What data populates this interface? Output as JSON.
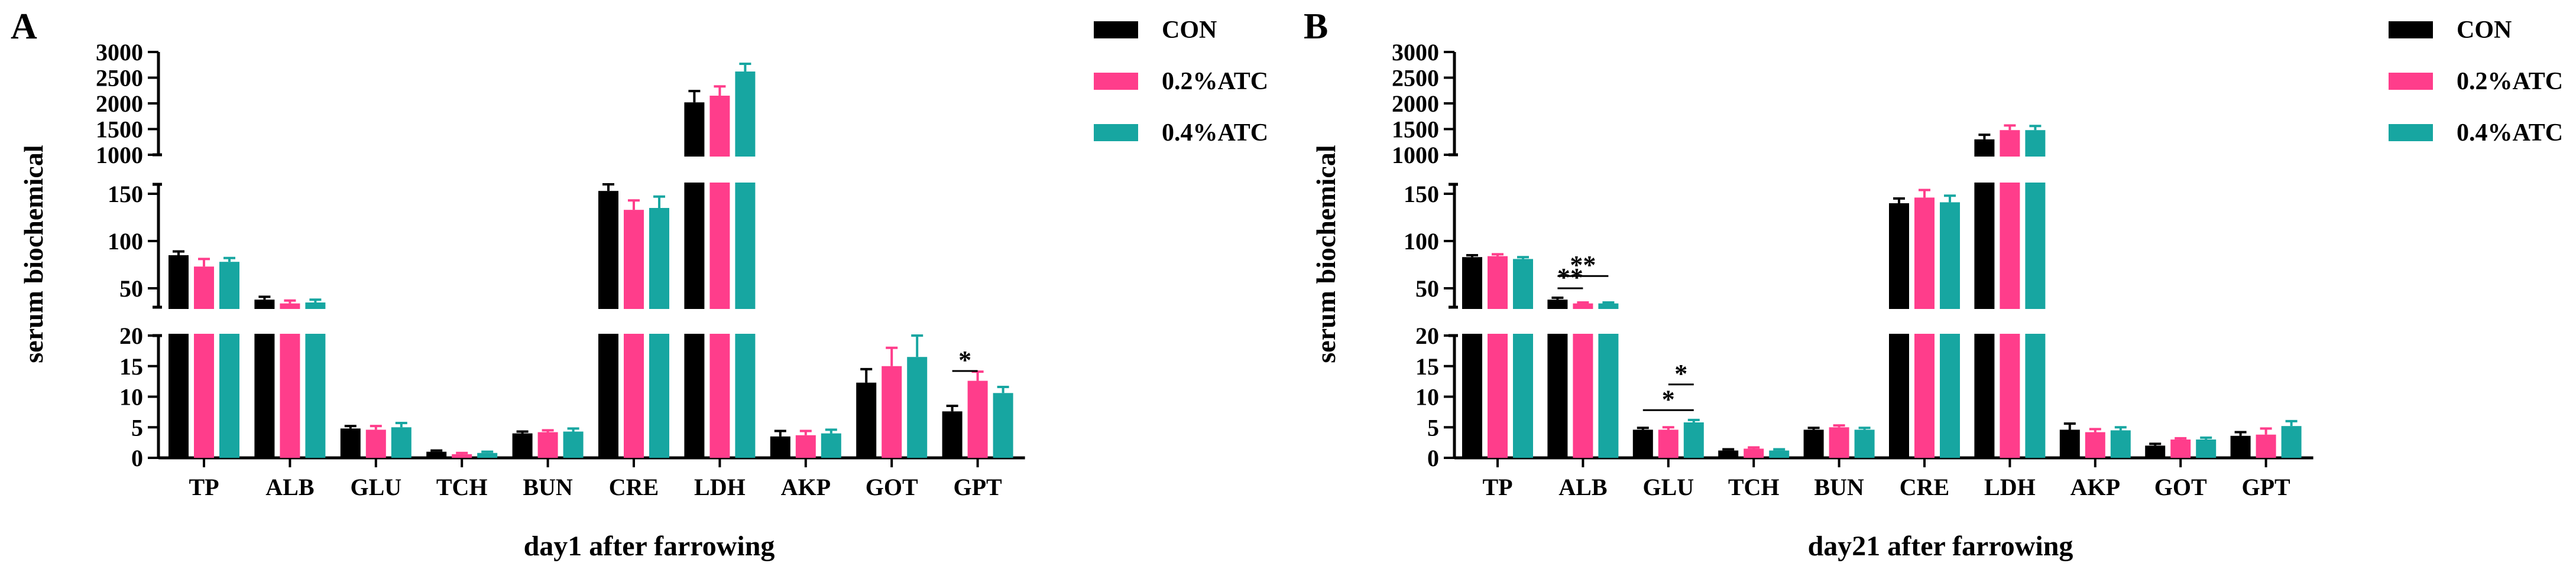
{
  "chart_data": [
    {
      "type": "bar",
      "panel_label": "A",
      "title": "",
      "xlabel": "day1 after farrowing",
      "ylabel": "serum biochemical",
      "categories": [
        "TP",
        "ALB",
        "GLU",
        "TCH",
        "BUN",
        "CRE",
        "LDH",
        "AKP",
        "GOT",
        "GPT"
      ],
      "series": [
        {
          "name": "CON",
          "color": "#000000",
          "values": [
            85,
            38,
            4.8,
            1.0,
            4.0,
            153,
            2020,
            3.5,
            12.3,
            7.6
          ],
          "errors": [
            4,
            3,
            0.4,
            0.2,
            0.3,
            8,
            220,
            0.9,
            2.2,
            0.9
          ]
        },
        {
          "name": "0.2%ATC",
          "color": "#ff3d8b",
          "values": [
            73,
            34,
            4.6,
            0.6,
            4.2,
            133,
            2150,
            3.7,
            15.0,
            12.6
          ],
          "errors": [
            8,
            3,
            0.6,
            0.2,
            0.3,
            10,
            180,
            0.7,
            3.0,
            1.5
          ]
        },
        {
          "name": "0.4%ATC",
          "color": "#17a6a1",
          "values": [
            78,
            35,
            5.0,
            0.8,
            4.3,
            135,
            2620,
            4.0,
            16.5,
            10.6
          ],
          "errors": [
            4,
            3,
            0.7,
            0.2,
            0.5,
            12,
            150,
            0.6,
            3.5,
            1.0
          ]
        }
      ],
      "y_segments": [
        {
          "range": [
            0,
            20
          ],
          "ticks": [
            "0",
            "5",
            "10",
            "15",
            "20"
          ]
        },
        {
          "range": [
            30,
            160
          ],
          "ticks": [
            "50",
            "100",
            "150"
          ]
        },
        {
          "range": [
            1000,
            3000
          ],
          "ticks": [
            "1000",
            "1500",
            "2000",
            "2500",
            "3000"
          ]
        }
      ],
      "annotations": [
        {
          "text": "*",
          "category": "GPT",
          "from_series": "CON",
          "to_series": "0.2%ATC",
          "y": 14.2
        }
      ],
      "legend": {
        "position": "top-right",
        "entries": [
          "CON",
          "0.2%ATC",
          "0.4%ATC"
        ]
      }
    },
    {
      "type": "bar",
      "panel_label": "B",
      "title": "",
      "xlabel": "day21 after farrowing",
      "ylabel": "serum biochemical",
      "categories": [
        "TP",
        "ALB",
        "GLU",
        "TCH",
        "BUN",
        "CRE",
        "LDH",
        "AKP",
        "GOT",
        "GPT"
      ],
      "series": [
        {
          "name": "CON",
          "color": "#000000",
          "values": [
            83,
            38,
            4.6,
            1.2,
            4.6,
            140,
            1300,
            4.6,
            2.0,
            3.6
          ],
          "errors": [
            2,
            2,
            0.3,
            0.2,
            0.3,
            5,
            90,
            1.0,
            0.3,
            0.6
          ]
        },
        {
          "name": "0.2%ATC",
          "color": "#ff3d8b",
          "values": [
            84,
            34,
            4.6,
            1.5,
            5.0,
            146,
            1480,
            4.2,
            3.0,
            3.8
          ],
          "errors": [
            2,
            1,
            0.4,
            0.2,
            0.3,
            8,
            90,
            0.5,
            0.2,
            1.0
          ]
        },
        {
          "name": "0.4%ATC",
          "color": "#17a6a1",
          "values": [
            81,
            34,
            5.8,
            1.2,
            4.6,
            141,
            1480,
            4.5,
            3.0,
            5.2
          ],
          "errors": [
            2,
            1,
            0.4,
            0.2,
            0.3,
            7,
            80,
            0.5,
            0.3,
            0.8
          ]
        }
      ],
      "y_segments": [
        {
          "range": [
            0,
            20
          ],
          "ticks": [
            "0",
            "5",
            "10",
            "15",
            "20"
          ]
        },
        {
          "range": [
            30,
            160
          ],
          "ticks": [
            "50",
            "100",
            "150"
          ]
        },
        {
          "range": [
            1000,
            3000
          ],
          "ticks": [
            "1000",
            "1500",
            "2000",
            "2500",
            "3000"
          ]
        }
      ],
      "annotations": [
        {
          "text": "**",
          "category": "ALB",
          "from_series": "CON",
          "to_series": "0.2%ATC",
          "y": 50
        },
        {
          "text": "**",
          "category": "ALB",
          "from_series": "CON",
          "to_series": "0.4%ATC",
          "y": 63
        },
        {
          "text": "*",
          "category": "GLU",
          "from_series": "CON",
          "to_series": "0.4%ATC",
          "y": 7.8
        },
        {
          "text": "*",
          "category": "GLU",
          "from_series": "0.2%ATC",
          "to_series": "0.4%ATC",
          "y": 12.0
        }
      ],
      "legend": {
        "position": "top-right",
        "entries": [
          "CON",
          "0.2%ATC",
          "0.4%ATC"
        ]
      }
    }
  ]
}
